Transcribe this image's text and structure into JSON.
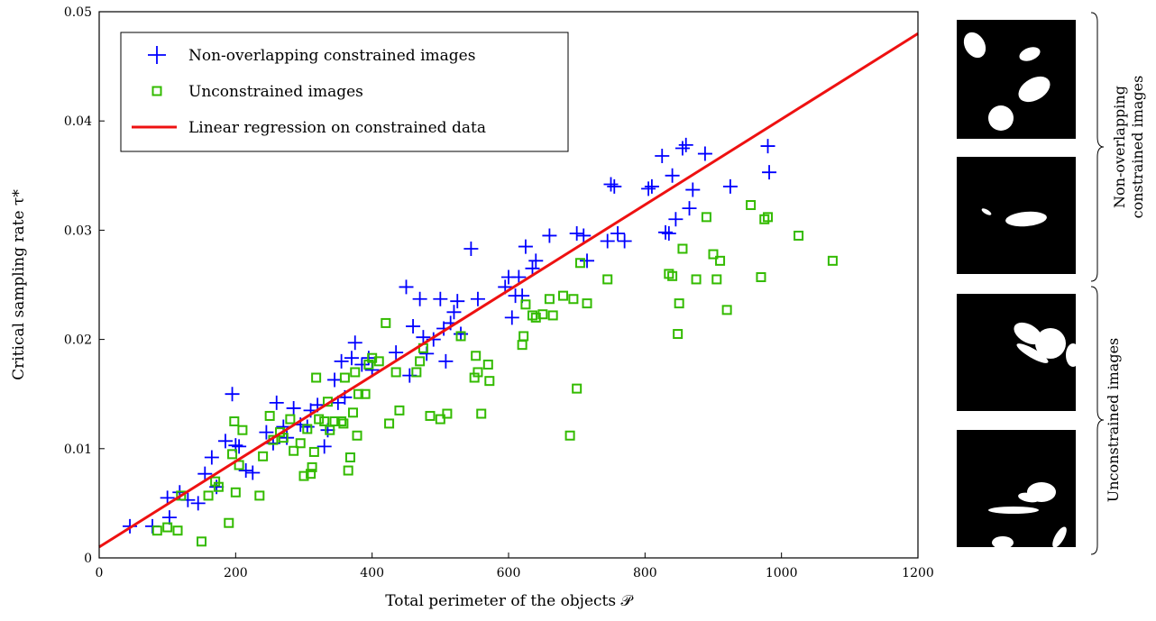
{
  "chart_data": {
    "type": "scatter",
    "xlabel": "Total perimeter of the objects 𝒫",
    "ylabel": "Critical sampling rate τ*",
    "xlim": [
      0,
      1200
    ],
    "ylim": [
      0,
      0.05
    ],
    "xticks": [
      0,
      200,
      400,
      600,
      800,
      1000,
      1200
    ],
    "yticks": [
      0,
      0.01,
      0.02,
      0.03,
      0.04,
      0.05
    ],
    "xtick_labels": [
      "0",
      "200",
      "400",
      "600",
      "800",
      "1000",
      "1200"
    ],
    "ytick_labels": [
      "0",
      "0.01",
      "0.02",
      "0.03",
      "0.04",
      "0.05"
    ],
    "grid": false,
    "legend_position": "top-left",
    "series": [
      {
        "name": "Non-overlapping constrained images",
        "marker": "plus",
        "color": "#0000ff",
        "points": [
          [
            45,
            0.0029
          ],
          [
            78,
            0.0029
          ],
          [
            100,
            0.0055
          ],
          [
            103,
            0.0037
          ],
          [
            118,
            0.006
          ],
          [
            130,
            0.0053
          ],
          [
            145,
            0.005
          ],
          [
            155,
            0.0077
          ],
          [
            165,
            0.0092
          ],
          [
            172,
            0.0065
          ],
          [
            185,
            0.0107
          ],
          [
            195,
            0.015
          ],
          [
            200,
            0.0103
          ],
          [
            205,
            0.0102
          ],
          [
            215,
            0.008
          ],
          [
            225,
            0.0078
          ],
          [
            245,
            0.0115
          ],
          [
            255,
            0.0105
          ],
          [
            260,
            0.0142
          ],
          [
            270,
            0.012
          ],
          [
            275,
            0.011
          ],
          [
            285,
            0.0137
          ],
          [
            295,
            0.0122
          ],
          [
            305,
            0.012
          ],
          [
            310,
            0.0135
          ],
          [
            320,
            0.014
          ],
          [
            330,
            0.0102
          ],
          [
            335,
            0.0117
          ],
          [
            345,
            0.0163
          ],
          [
            350,
            0.0142
          ],
          [
            355,
            0.018
          ],
          [
            360,
            0.0147
          ],
          [
            370,
            0.0183
          ],
          [
            375,
            0.0197
          ],
          [
            385,
            0.0177
          ],
          [
            395,
            0.0183
          ],
          [
            400,
            0.0172
          ],
          [
            435,
            0.0188
          ],
          [
            450,
            0.0248
          ],
          [
            455,
            0.0167
          ],
          [
            460,
            0.0212
          ],
          [
            470,
            0.0237
          ],
          [
            475,
            0.0202
          ],
          [
            480,
            0.0187
          ],
          [
            490,
            0.02
          ],
          [
            500,
            0.0237
          ],
          [
            505,
            0.021
          ],
          [
            508,
            0.018
          ],
          [
            515,
            0.0215
          ],
          [
            520,
            0.0225
          ],
          [
            525,
            0.0235
          ],
          [
            530,
            0.0205
          ],
          [
            545,
            0.0283
          ],
          [
            555,
            0.0237
          ],
          [
            595,
            0.0248
          ],
          [
            600,
            0.0257
          ],
          [
            605,
            0.022
          ],
          [
            610,
            0.024
          ],
          [
            615,
            0.0257
          ],
          [
            620,
            0.024
          ],
          [
            625,
            0.0285
          ],
          [
            635,
            0.0265
          ],
          [
            640,
            0.0272
          ],
          [
            660,
            0.0295
          ],
          [
            700,
            0.0297
          ],
          [
            710,
            0.0295
          ],
          [
            715,
            0.0272
          ],
          [
            745,
            0.029
          ],
          [
            750,
            0.0342
          ],
          [
            755,
            0.034
          ],
          [
            760,
            0.0297
          ],
          [
            770,
            0.029
          ],
          [
            805,
            0.0338
          ],
          [
            810,
            0.034
          ],
          [
            825,
            0.0368
          ],
          [
            830,
            0.0298
          ],
          [
            835,
            0.0297
          ],
          [
            840,
            0.035
          ],
          [
            845,
            0.031
          ],
          [
            855,
            0.0375
          ],
          [
            860,
            0.0378
          ],
          [
            865,
            0.032
          ],
          [
            870,
            0.0337
          ],
          [
            888,
            0.037
          ],
          [
            925,
            0.034
          ],
          [
            980,
            0.0377
          ],
          [
            982,
            0.0353
          ]
        ]
      },
      {
        "name": "Unconstrained images",
        "marker": "square",
        "color": "#33bb00",
        "points": [
          [
            85,
            0.0025
          ],
          [
            100,
            0.0028
          ],
          [
            115,
            0.0025
          ],
          [
            120,
            0.0057
          ],
          [
            150,
            0.0015
          ],
          [
            160,
            0.0057
          ],
          [
            170,
            0.007
          ],
          [
            175,
            0.0065
          ],
          [
            190,
            0.0032
          ],
          [
            195,
            0.0095
          ],
          [
            198,
            0.0125
          ],
          [
            200,
            0.006
          ],
          [
            205,
            0.0085
          ],
          [
            210,
            0.0117
          ],
          [
            235,
            0.0057
          ],
          [
            240,
            0.0093
          ],
          [
            250,
            0.013
          ],
          [
            255,
            0.0108
          ],
          [
            265,
            0.0115
          ],
          [
            270,
            0.011
          ],
          [
            280,
            0.0127
          ],
          [
            285,
            0.0098
          ],
          [
            295,
            0.0105
          ],
          [
            300,
            0.0075
          ],
          [
            305,
            0.0118
          ],
          [
            310,
            0.0077
          ],
          [
            312,
            0.0083
          ],
          [
            315,
            0.0097
          ],
          [
            318,
            0.0165
          ],
          [
            322,
            0.0127
          ],
          [
            330,
            0.0125
          ],
          [
            335,
            0.0143
          ],
          [
            338,
            0.0117
          ],
          [
            345,
            0.0125
          ],
          [
            355,
            0.0125
          ],
          [
            358,
            0.0123
          ],
          [
            360,
            0.0165
          ],
          [
            365,
            0.008
          ],
          [
            368,
            0.0092
          ],
          [
            372,
            0.0133
          ],
          [
            375,
            0.017
          ],
          [
            378,
            0.0112
          ],
          [
            380,
            0.015
          ],
          [
            390,
            0.015
          ],
          [
            395,
            0.0177
          ],
          [
            400,
            0.0183
          ],
          [
            410,
            0.018
          ],
          [
            420,
            0.0215
          ],
          [
            425,
            0.0123
          ],
          [
            435,
            0.017
          ],
          [
            440,
            0.0135
          ],
          [
            465,
            0.017
          ],
          [
            470,
            0.018
          ],
          [
            475,
            0.0192
          ],
          [
            485,
            0.013
          ],
          [
            500,
            0.0127
          ],
          [
            510,
            0.0132
          ],
          [
            530,
            0.0203
          ],
          [
            550,
            0.0165
          ],
          [
            552,
            0.0185
          ],
          [
            555,
            0.017
          ],
          [
            560,
            0.0132
          ],
          [
            570,
            0.0177
          ],
          [
            572,
            0.0162
          ],
          [
            620,
            0.0195
          ],
          [
            622,
            0.0203
          ],
          [
            625,
            0.0232
          ],
          [
            635,
            0.0222
          ],
          [
            640,
            0.022
          ],
          [
            650,
            0.0223
          ],
          [
            660,
            0.0237
          ],
          [
            665,
            0.0222
          ],
          [
            680,
            0.024
          ],
          [
            690,
            0.0112
          ],
          [
            695,
            0.0237
          ],
          [
            700,
            0.0155
          ],
          [
            705,
            0.027
          ],
          [
            715,
            0.0233
          ],
          [
            745,
            0.0255
          ],
          [
            835,
            0.026
          ],
          [
            840,
            0.0258
          ],
          [
            848,
            0.0205
          ],
          [
            850,
            0.0233
          ],
          [
            855,
            0.0283
          ],
          [
            875,
            0.0255
          ],
          [
            890,
            0.0312
          ],
          [
            900,
            0.0278
          ],
          [
            905,
            0.0255
          ],
          [
            910,
            0.0272
          ],
          [
            920,
            0.0227
          ],
          [
            955,
            0.0323
          ],
          [
            970,
            0.0257
          ],
          [
            975,
            0.031
          ],
          [
            980,
            0.0312
          ],
          [
            1025,
            0.0295
          ],
          [
            1075,
            0.0272
          ]
        ]
      },
      {
        "name": "Linear regression on constrained data",
        "marker": "line",
        "color": "#ee1111",
        "x": [
          0,
          1200
        ],
        "y": [
          0.001,
          0.048
        ]
      }
    ]
  },
  "side_panels": {
    "constrained_label_line1": "Non-overlapping",
    "constrained_label_line2": "constrained images",
    "unconstrained_label": "Unconstrained images"
  }
}
